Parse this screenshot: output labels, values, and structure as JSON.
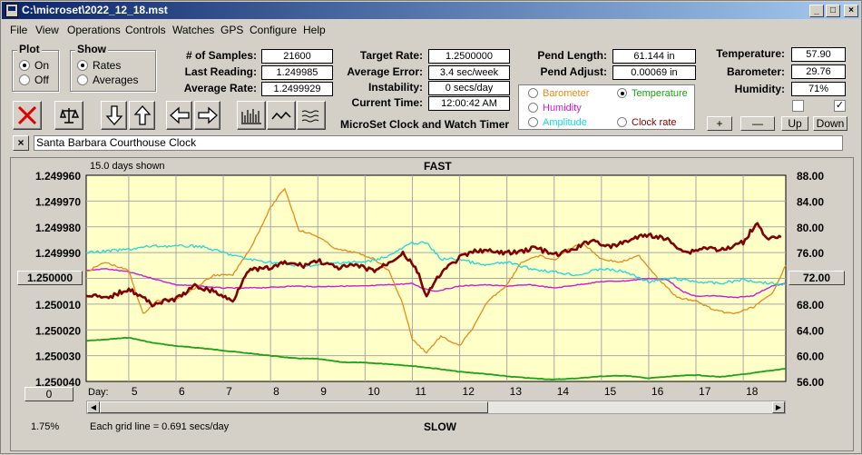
{
  "window": {
    "title": "C:\\microset\\2022_12_18.mst"
  },
  "menu": [
    "File",
    "View",
    "Operations",
    "Controls",
    "Watches",
    "GPS",
    "Configure",
    "Help"
  ],
  "plot": {
    "title": "Plot",
    "on": "On",
    "off": "Off"
  },
  "show": {
    "title": "Show",
    "rates": "Rates",
    "averages": "Averages"
  },
  "stats": {
    "samples_label": "# of Samples:",
    "samples": "21600",
    "last_label": "Last Reading:",
    "last": "1.249985",
    "avg_label": "Average Rate:",
    "avg": "1.2499929"
  },
  "target": {
    "target_label": "Target Rate:",
    "target": "1.2500000",
    "error_label": "Average Error:",
    "error": "3.4 sec/week",
    "instab_label": "Instability:",
    "instab": "0 secs/day",
    "time_label": "Current Time:",
    "time": "12:00:42 AM"
  },
  "pend": {
    "length_label": "Pend Length:",
    "length": "61.144 in",
    "adjust_label": "Pend Adjust:",
    "adjust": "0.00069 in"
  },
  "env": {
    "temp_label": "Temperature:",
    "temp": "57.90",
    "baro_label": "Barometer:",
    "baro": "29.76",
    "hum_label": "Humidity:",
    "hum": "71%"
  },
  "brand": "MicroSet Clock and Watch Timer",
  "selector": {
    "barometer": "Barometer",
    "temperature": "Temperature",
    "humidity": "Humidity",
    "amplitude": "Amplitude",
    "clockrate": "Clock rate",
    "colors": {
      "barometer": "#e88a1a",
      "temperature": "#1aa01a",
      "humidity": "#d01ad0",
      "amplitude": "#1adada",
      "clockrate": "#800000"
    }
  },
  "scale_buttons": {
    "plus": "+",
    "minus": "—",
    "up": "Up",
    "down": "Down"
  },
  "clock_name": "Santa Barbara Courthouse Clock",
  "chart": {
    "days_shown": "15.0 days shown",
    "top_label": "FAST",
    "bottom_label": "SLOW",
    "grid_note": "Each grid line = 0.691 secs/day",
    "left_button": "1.250000",
    "right_button": "72.00",
    "zero_button": "0",
    "percent": "1.75%",
    "day_label": "Day:"
  },
  "chart_data": {
    "type": "line",
    "xlabel": "Day:",
    "x_ticks": [
      "5",
      "6",
      "7",
      "8",
      "9",
      "10",
      "11",
      "12",
      "13",
      "14",
      "15",
      "16",
      "17",
      "18"
    ],
    "xlim": [
      4.1,
      18.9
    ],
    "y_left_ticks": [
      "1.249960",
      "1.249970",
      "1.249980",
      "1.249990",
      "1.250000",
      "1.250010",
      "1.250020",
      "1.250030",
      "1.250040"
    ],
    "y_left_lim": [
      1.24996,
      1.25004
    ],
    "y_right_ticks": [
      "88.00",
      "84.00",
      "80.00",
      "76.00",
      "72.00",
      "68.00",
      "64.00",
      "60.00",
      "56.00"
    ],
    "y_right_lim": [
      56,
      88
    ],
    "grid": true,
    "series": [
      {
        "name": "Clock rate",
        "color": "#800000",
        "axis": "left",
        "x": [
          4.1,
          4.5,
          5,
          5.5,
          6,
          6.4,
          6.8,
          7.2,
          7.5,
          8,
          8.3,
          8.7,
          9,
          9.4,
          9.8,
          10.2,
          10.5,
          10.8,
          11.1,
          11.3,
          11.6,
          12,
          12.4,
          12.8,
          13.2,
          13.6,
          14,
          14.4,
          14.8,
          15.2,
          15.6,
          16,
          16.4,
          16.8,
          17.2,
          17.6,
          18,
          18.3,
          18.5,
          18.8
        ],
        "y": [
          1.250006,
          1.250008,
          1.250004,
          1.25001,
          1.250008,
          1.250003,
          1.250005,
          1.250009,
          1.249997,
          1.249996,
          1.249994,
          1.249995,
          1.249993,
          1.249996,
          1.249995,
          1.249997,
          1.249994,
          1.24999,
          1.249997,
          1.250007,
          1.249998,
          1.249992,
          1.249989,
          1.24999,
          1.24999,
          1.249988,
          1.249991,
          1.249989,
          1.249985,
          1.249988,
          1.249985,
          1.249983,
          1.249985,
          1.24999,
          1.249988,
          1.249989,
          1.249986,
          1.249978,
          1.249985,
          1.249984
        ]
      },
      {
        "name": "Barometer",
        "color": "#e88a1a",
        "axis": "right",
        "x": [
          4.1,
          4.5,
          5,
          5.3,
          5.6,
          6,
          6.4,
          6.8,
          7.2,
          7.6,
          8,
          8.3,
          8.6,
          9,
          9.4,
          9.8,
          10.2,
          10.5,
          10.8,
          11,
          11.3,
          11.6,
          12,
          12.3,
          12.6,
          13,
          13.3,
          13.7,
          14,
          14.3,
          14.6,
          15,
          15.4,
          15.8,
          16.2,
          16.6,
          17,
          17.4,
          17.8,
          18.2,
          18.6,
          18.9
        ],
        "y": [
          73,
          74.5,
          73.2,
          66.5,
          68.5,
          68.8,
          70.5,
          72.5,
          72.5,
          77,
          83,
          86,
          79.5,
          78.5,
          76.5,
          76,
          75,
          73.2,
          68,
          62.5,
          60.5,
          63,
          61.5,
          64.5,
          68.5,
          71,
          74.5,
          75.5,
          74.8,
          76.5,
          77.5,
          75,
          74.5,
          75.5,
          72,
          69,
          68.5,
          67,
          66.5,
          67.5,
          69.5,
          74
        ]
      },
      {
        "name": "Temperature",
        "color": "#1aa01a",
        "axis": "right",
        "x": [
          4.1,
          4.5,
          5,
          5.5,
          6,
          6.5,
          7,
          7.5,
          8,
          8.5,
          9,
          9.5,
          10,
          10.5,
          11,
          11.5,
          12,
          12.5,
          13,
          13.5,
          14,
          14.5,
          15,
          15.5,
          16,
          16.5,
          17,
          17.5,
          18,
          18.5,
          18.9
        ],
        "y": [
          62.3,
          62.5,
          62.8,
          62,
          61.5,
          61.2,
          60.8,
          60.4,
          60,
          59.6,
          59.5,
          59,
          58.9,
          58.7,
          58.4,
          58,
          57.5,
          57.2,
          56.8,
          56.5,
          56.3,
          56.5,
          56.8,
          56.9,
          56.5,
          56.8,
          57,
          56.7,
          57.1,
          57.6,
          58
        ]
      },
      {
        "name": "Humidity",
        "color": "#d01ad0",
        "axis": "right",
        "x": [
          4.1,
          4.5,
          5,
          5.5,
          6,
          6.5,
          7,
          7.5,
          8,
          8.5,
          9,
          9.5,
          10,
          10.5,
          11,
          11.2,
          11.5,
          12,
          12.5,
          13,
          13.5,
          14,
          14.5,
          15,
          15.5,
          16,
          16.4,
          16.7,
          17,
          17.4,
          17.8,
          18.2,
          18.6,
          18.9
        ],
        "y": [
          73.2,
          73.5,
          73,
          72,
          71,
          70.8,
          70.5,
          70.5,
          70.6,
          70.8,
          70.7,
          70.8,
          70.8,
          71,
          71.2,
          70.5,
          70,
          70.8,
          71,
          70.8,
          71,
          70.5,
          71,
          71.5,
          71.6,
          72,
          71.8,
          70,
          69.2,
          69.3,
          69,
          69.3,
          70.8,
          71.2
        ]
      },
      {
        "name": "Amplitude",
        "color": "#1adada",
        "axis": "right",
        "x": [
          4.1,
          4.5,
          5,
          5.5,
          6,
          6.5,
          7,
          7.5,
          8,
          8.5,
          9,
          9.5,
          10,
          10.5,
          11,
          11.3,
          11.6,
          12,
          12.5,
          13,
          13.5,
          14,
          14.5,
          15,
          15.5,
          16,
          16.5,
          17,
          17.5,
          18,
          18.5,
          18.9
        ],
        "y": [
          76,
          76.2,
          76.5,
          77,
          77,
          77,
          76,
          75,
          74.5,
          74,
          74,
          74.5,
          74.5,
          75.5,
          77.5,
          77.5,
          75,
          75,
          74,
          74.5,
          73.5,
          73,
          72.5,
          73.5,
          73,
          71.5,
          72,
          71.5,
          71.2,
          71.8,
          71.3,
          71
        ]
      }
    ]
  }
}
